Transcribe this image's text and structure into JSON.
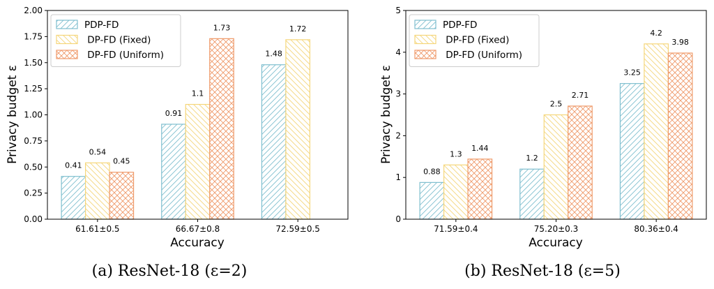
{
  "chart_data": [
    {
      "type": "bar",
      "caption": "(a) ResNet-18 (ε=2)",
      "xlabel": "Accuracy",
      "ylabel": "Privacy budget ε",
      "categories": [
        "61.61±0.5",
        "66.67±0.8",
        "72.59±0.5"
      ],
      "ylim": [
        0,
        2.0
      ],
      "yticks": [
        "0.00",
        "0.25",
        "0.50",
        "0.75",
        "1.00",
        "1.25",
        "1.50",
        "1.75",
        "2.00"
      ],
      "legend_position": "top-left",
      "series": [
        {
          "name": "PDP-FD",
          "values": [
            0.41,
            0.91,
            1.48
          ],
          "labels": [
            "0.41",
            "0.91",
            "1.48"
          ],
          "color": "#7fbfcf",
          "hatch": "diag"
        },
        {
          "name": " DP-FD (Fixed)",
          "values": [
            0.54,
            1.1,
            1.72
          ],
          "labels": [
            "0.54",
            "1.1",
            "1.72"
          ],
          "color": "#f5d67a",
          "hatch": "antidiag"
        },
        {
          "name": " DP-FD (Uniform)",
          "values": [
            0.45,
            1.73,
            null
          ],
          "labels": [
            "0.45",
            "1.73",
            ""
          ],
          "color": "#ef9a6a",
          "hatch": "cross"
        }
      ]
    },
    {
      "type": "bar",
      "caption": "(b) ResNet-18 (ε=5)",
      "xlabel": "Accuracy",
      "ylabel": "Privacy budget ε",
      "categories": [
        "71.59±0.4",
        "75.20±0.3",
        "80.36±0.4"
      ],
      "ylim": [
        0,
        5
      ],
      "yticks": [
        "0",
        "1",
        "2",
        "3",
        "4",
        "5"
      ],
      "legend_position": "top-left",
      "series": [
        {
          "name": "PDP-FD",
          "values": [
            0.88,
            1.2,
            3.25
          ],
          "labels": [
            "0.88",
            "1.2",
            "3.25"
          ],
          "color": "#7fbfcf",
          "hatch": "diag"
        },
        {
          "name": " DP-FD (Fixed)",
          "values": [
            1.3,
            2.5,
            4.2
          ],
          "labels": [
            "1.3",
            "2.5",
            "4.2"
          ],
          "color": "#f5d67a",
          "hatch": "antidiag"
        },
        {
          "name": " DP-FD (Uniform)",
          "values": [
            1.44,
            2.71,
            3.98
          ],
          "labels": [
            "1.44",
            "2.71",
            "3.98"
          ],
          "color": "#ef9a6a",
          "hatch": "cross"
        }
      ]
    }
  ]
}
